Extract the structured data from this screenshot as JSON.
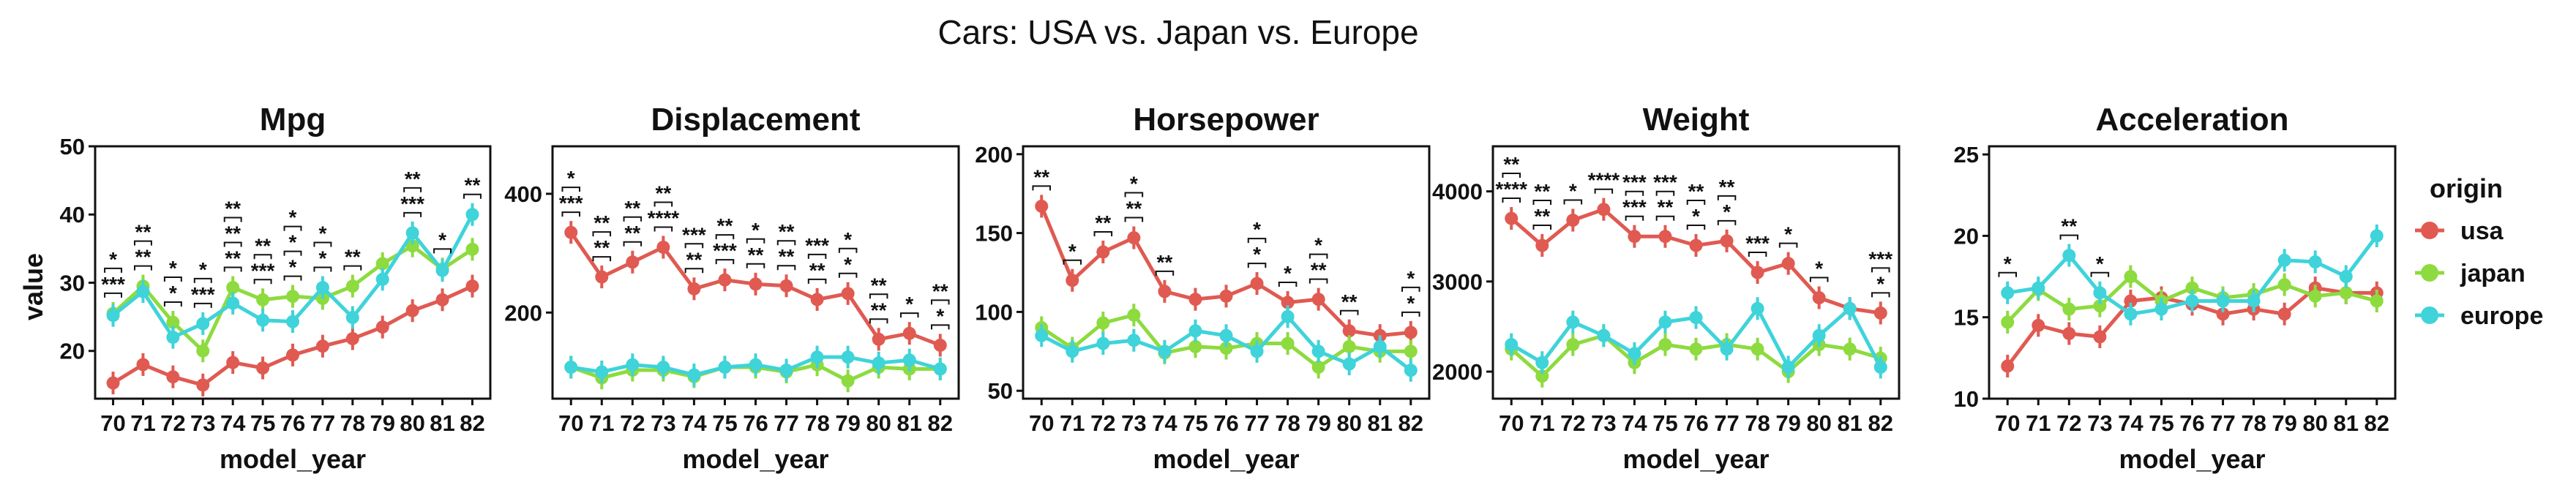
{
  "title": "Cars: USA vs. Japan vs. Europe",
  "x_label": "model_year",
  "y_label": "value",
  "legend": {
    "title": "origin",
    "items": [
      {
        "name": "usa",
        "color": "#E05A52"
      },
      {
        "name": "japan",
        "color": "#8DDB3F"
      },
      {
        "name": "europe",
        "color": "#3FD3DA"
      }
    ]
  },
  "chart_data": [
    {
      "type": "line",
      "title": "Mpg",
      "categories": [
        "70",
        "71",
        "72",
        "73",
        "74",
        "75",
        "76",
        "77",
        "78",
        "79",
        "80",
        "81",
        "82"
      ],
      "ylim": [
        13,
        50
      ],
      "yticks": [
        20,
        30,
        40,
        50
      ],
      "series": [
        {
          "name": "usa",
          "values": [
            15.3,
            18.0,
            16.2,
            15.0,
            18.3,
            17.5,
            19.4,
            20.7,
            21.8,
            23.5,
            25.9,
            27.5,
            29.5
          ]
        },
        {
          "name": "japan",
          "values": [
            25.5,
            29.5,
            24.2,
            20.0,
            29.3,
            27.5,
            28.0,
            27.7,
            29.5,
            32.8,
            35.4,
            32.0,
            34.9
          ]
        },
        {
          "name": "europe",
          "values": [
            25.2,
            28.7,
            22.0,
            24.0,
            27.0,
            24.5,
            24.3,
            29.3,
            24.9,
            30.5,
            37.3,
            31.8,
            40.0
          ]
        }
      ],
      "significance": [
        {
          "x": "70",
          "labels": [
            "***",
            "*"
          ]
        },
        {
          "x": "71",
          "labels": [
            "**",
            "**"
          ]
        },
        {
          "x": "72",
          "labels": [
            "*",
            "*"
          ]
        },
        {
          "x": "73",
          "labels": [
            "***",
            "*"
          ]
        },
        {
          "x": "74",
          "labels": [
            "**",
            "**",
            "**"
          ]
        },
        {
          "x": "75",
          "labels": [
            "***",
            "**"
          ]
        },
        {
          "x": "76",
          "labels": [
            "*",
            "*",
            "*"
          ]
        },
        {
          "x": "77",
          "labels": [
            "*",
            "*"
          ]
        },
        {
          "x": "78",
          "labels": [
            "**"
          ]
        },
        {
          "x": "80",
          "labels": [
            "***",
            "**",
            "**"
          ]
        },
        {
          "x": "81",
          "labels": [
            "*"
          ]
        },
        {
          "x": "82",
          "labels": [
            "**"
          ]
        }
      ]
    },
    {
      "type": "line",
      "title": "Displacement",
      "categories": [
        "70",
        "71",
        "72",
        "73",
        "74",
        "75",
        "76",
        "77",
        "78",
        "79",
        "80",
        "81",
        "82"
      ],
      "ylim": [
        55,
        480
      ],
      "yticks": [
        200,
        400
      ],
      "series": [
        {
          "name": "usa",
          "values": [
            335,
            260,
            285,
            310,
            240,
            255,
            248,
            245,
            222,
            232,
            155,
            165,
            145
          ]
        },
        {
          "name": "japan",
          "values": [
            108,
            90,
            103,
            103,
            92,
            108,
            108,
            100,
            112,
            85,
            108,
            105,
            105
          ]
        },
        {
          "name": "europe",
          "values": [
            108,
            100,
            112,
            108,
            95,
            108,
            112,
            103,
            125,
            125,
            115,
            120,
            105
          ]
        }
      ],
      "significance": [
        {
          "x": "70",
          "labels": [
            "***",
            "*"
          ]
        },
        {
          "x": "71",
          "labels": [
            "**",
            "**"
          ]
        },
        {
          "x": "72",
          "labels": [
            "**",
            "**"
          ]
        },
        {
          "x": "73",
          "labels": [
            "****",
            "**"
          ]
        },
        {
          "x": "74",
          "labels": [
            "**",
            "***"
          ]
        },
        {
          "x": "75",
          "labels": [
            "***",
            "**"
          ]
        },
        {
          "x": "76",
          "labels": [
            "**",
            "*"
          ]
        },
        {
          "x": "77",
          "labels": [
            "**",
            "**"
          ]
        },
        {
          "x": "78",
          "labels": [
            "**",
            "***"
          ]
        },
        {
          "x": "79",
          "labels": [
            "*",
            "*"
          ]
        },
        {
          "x": "80",
          "labels": [
            "**",
            "**"
          ]
        },
        {
          "x": "81",
          "labels": [
            "*"
          ]
        },
        {
          "x": "82",
          "labels": [
            "*",
            "**"
          ]
        }
      ]
    },
    {
      "type": "line",
      "title": "Horsepower",
      "categories": [
        "70",
        "71",
        "72",
        "73",
        "74",
        "75",
        "76",
        "77",
        "78",
        "79",
        "80",
        "81",
        "82"
      ],
      "ylim": [
        45,
        205
      ],
      "yticks": [
        50,
        100,
        150,
        200
      ],
      "series": [
        {
          "name": "usa",
          "values": [
            167,
            120,
            138,
            147,
            113,
            108,
            110,
            118,
            106,
            108,
            88,
            85,
            87
          ]
        },
        {
          "name": "japan",
          "values": [
            90,
            77,
            93,
            98,
            74,
            78,
            77,
            80,
            80,
            65,
            78,
            75,
            75
          ]
        },
        {
          "name": "europe",
          "values": [
            85,
            75,
            80,
            82,
            75,
            88,
            85,
            75,
            97,
            75,
            67,
            78,
            63
          ]
        }
      ],
      "significance": [
        {
          "x": "70",
          "labels": [
            "**"
          ]
        },
        {
          "x": "71",
          "labels": [
            "*"
          ]
        },
        {
          "x": "72",
          "labels": [
            "**"
          ]
        },
        {
          "x": "73",
          "labels": [
            "**",
            "*"
          ]
        },
        {
          "x": "74",
          "labels": [
            "**"
          ]
        },
        {
          "x": "77",
          "labels": [
            "*",
            "*"
          ]
        },
        {
          "x": "78",
          "labels": [
            "*"
          ]
        },
        {
          "x": "79",
          "labels": [
            "**",
            "*"
          ]
        },
        {
          "x": "80",
          "labels": [
            "**"
          ]
        },
        {
          "x": "82",
          "labels": [
            "*",
            "*"
          ]
        }
      ]
    },
    {
      "type": "line",
      "title": "Weight",
      "categories": [
        "70",
        "71",
        "72",
        "73",
        "74",
        "75",
        "76",
        "77",
        "78",
        "79",
        "80",
        "81",
        "82"
      ],
      "ylim": [
        1700,
        4500
      ],
      "yticks": [
        2000,
        3000,
        4000
      ],
      "series": [
        {
          "name": "usa",
          "values": [
            3700,
            3400,
            3680,
            3800,
            3500,
            3500,
            3400,
            3450,
            3100,
            3200,
            2820,
            2700,
            2650
          ]
        },
        {
          "name": "japan",
          "values": [
            2250,
            1950,
            2300,
            2400,
            2100,
            2300,
            2250,
            2300,
            2250,
            2000,
            2300,
            2250,
            2150
          ]
        },
        {
          "name": "europe",
          "values": [
            2300,
            2100,
            2550,
            2400,
            2200,
            2550,
            2600,
            2250,
            2700,
            2050,
            2400,
            2700,
            2050
          ]
        }
      ],
      "significance": [
        {
          "x": "70",
          "labels": [
            "****",
            "**"
          ]
        },
        {
          "x": "71",
          "labels": [
            "**",
            "**"
          ]
        },
        {
          "x": "72",
          "labels": [
            "*"
          ]
        },
        {
          "x": "73",
          "labels": [
            "****",
            "***"
          ]
        },
        {
          "x": "74",
          "labels": [
            "***",
            "***"
          ]
        },
        {
          "x": "75",
          "labels": [
            "**",
            "***"
          ]
        },
        {
          "x": "76",
          "labels": [
            "*",
            "**"
          ]
        },
        {
          "x": "77",
          "labels": [
            "*",
            "**"
          ]
        },
        {
          "x": "78",
          "labels": [
            "***"
          ]
        },
        {
          "x": "79",
          "labels": [
            "*"
          ]
        },
        {
          "x": "80",
          "labels": [
            "*"
          ]
        },
        {
          "x": "82",
          "labels": [
            "*",
            "***"
          ]
        }
      ]
    },
    {
      "type": "line",
      "title": "Acceleration",
      "categories": [
        "70",
        "71",
        "72",
        "73",
        "74",
        "75",
        "76",
        "77",
        "78",
        "79",
        "80",
        "81",
        "82"
      ],
      "ylim": [
        10,
        25.5
      ],
      "yticks": [
        10,
        15,
        20,
        25
      ],
      "series": [
        {
          "name": "usa",
          "values": [
            12.0,
            14.5,
            14.0,
            13.8,
            16.0,
            16.2,
            15.8,
            15.2,
            15.5,
            15.2,
            16.8,
            16.5,
            16.5
          ]
        },
        {
          "name": "japan",
          "values": [
            14.7,
            16.7,
            15.5,
            15.7,
            17.5,
            16.0,
            16.8,
            16.2,
            16.4,
            17.0,
            16.3,
            16.5,
            16.0
          ]
        },
        {
          "name": "europe",
          "values": [
            16.5,
            16.8,
            18.8,
            16.5,
            15.2,
            15.5,
            16.0,
            16.0,
            16.0,
            18.5,
            18.4,
            17.5,
            20.0
          ]
        }
      ],
      "significance": [
        {
          "x": "70",
          "labels": [
            "*"
          ]
        },
        {
          "x": "72",
          "labels": [
            "**"
          ]
        },
        {
          "x": "73",
          "labels": [
            "*"
          ]
        }
      ]
    }
  ]
}
